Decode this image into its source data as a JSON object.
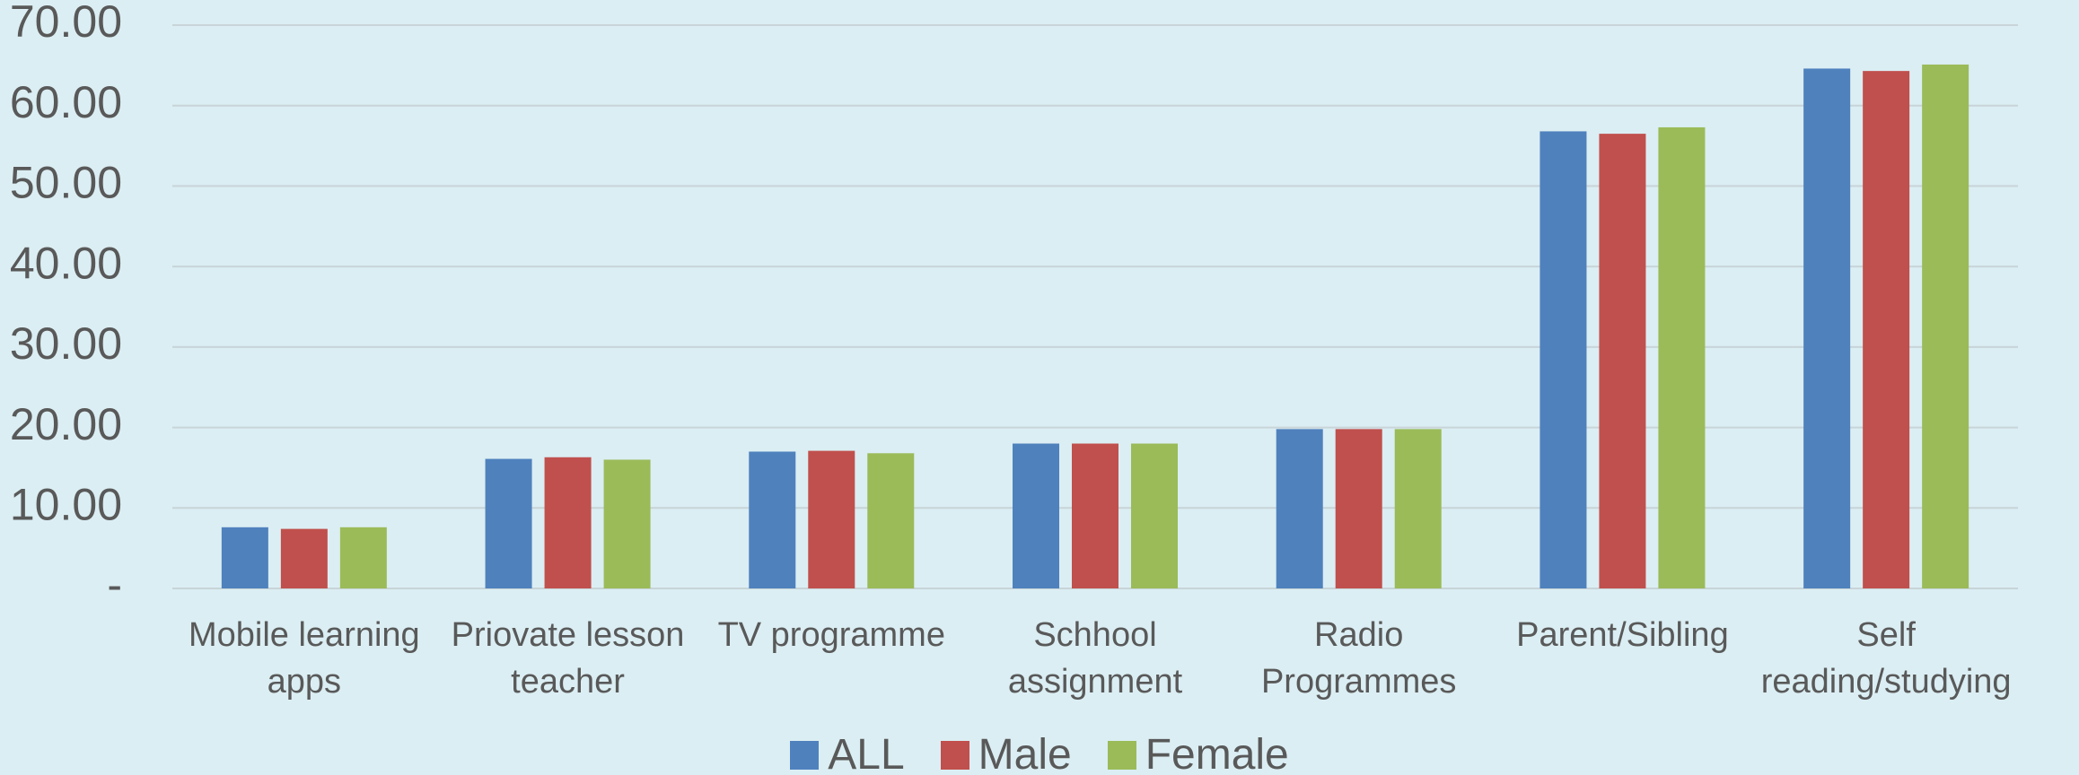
{
  "chart_data": {
    "type": "bar",
    "categories": [
      "Mobile learning apps",
      "Priovate lesson teacher",
      "TV programme",
      "Schhool assignment",
      "Radio Programmes",
      "Parent/Sibling",
      "Self reading/studying"
    ],
    "series": [
      {
        "name": "ALL",
        "color": "#4f81bd",
        "values": [
          7.6,
          16.1,
          17.0,
          18.0,
          19.8,
          56.8,
          64.6
        ]
      },
      {
        "name": "Male",
        "color": "#c0504d",
        "values": [
          7.4,
          16.3,
          17.1,
          18.0,
          19.8,
          56.5,
          64.3
        ]
      },
      {
        "name": "Female",
        "color": "#9bbb59",
        "values": [
          7.6,
          16.0,
          16.8,
          18.0,
          19.8,
          57.3,
          65.1
        ]
      }
    ],
    "ylim": [
      0,
      70
    ],
    "yticks": [
      {
        "value": 0,
        "label": "-"
      },
      {
        "value": 10,
        "label": "10.00"
      },
      {
        "value": 20,
        "label": "20.00"
      },
      {
        "value": 30,
        "label": "30.00"
      },
      {
        "value": 40,
        "label": "40.00"
      },
      {
        "value": 50,
        "label": "50.00"
      },
      {
        "value": 60,
        "label": "60.00"
      },
      {
        "value": 70,
        "label": "70.00"
      }
    ],
    "grid": true,
    "legend": "bottom"
  }
}
